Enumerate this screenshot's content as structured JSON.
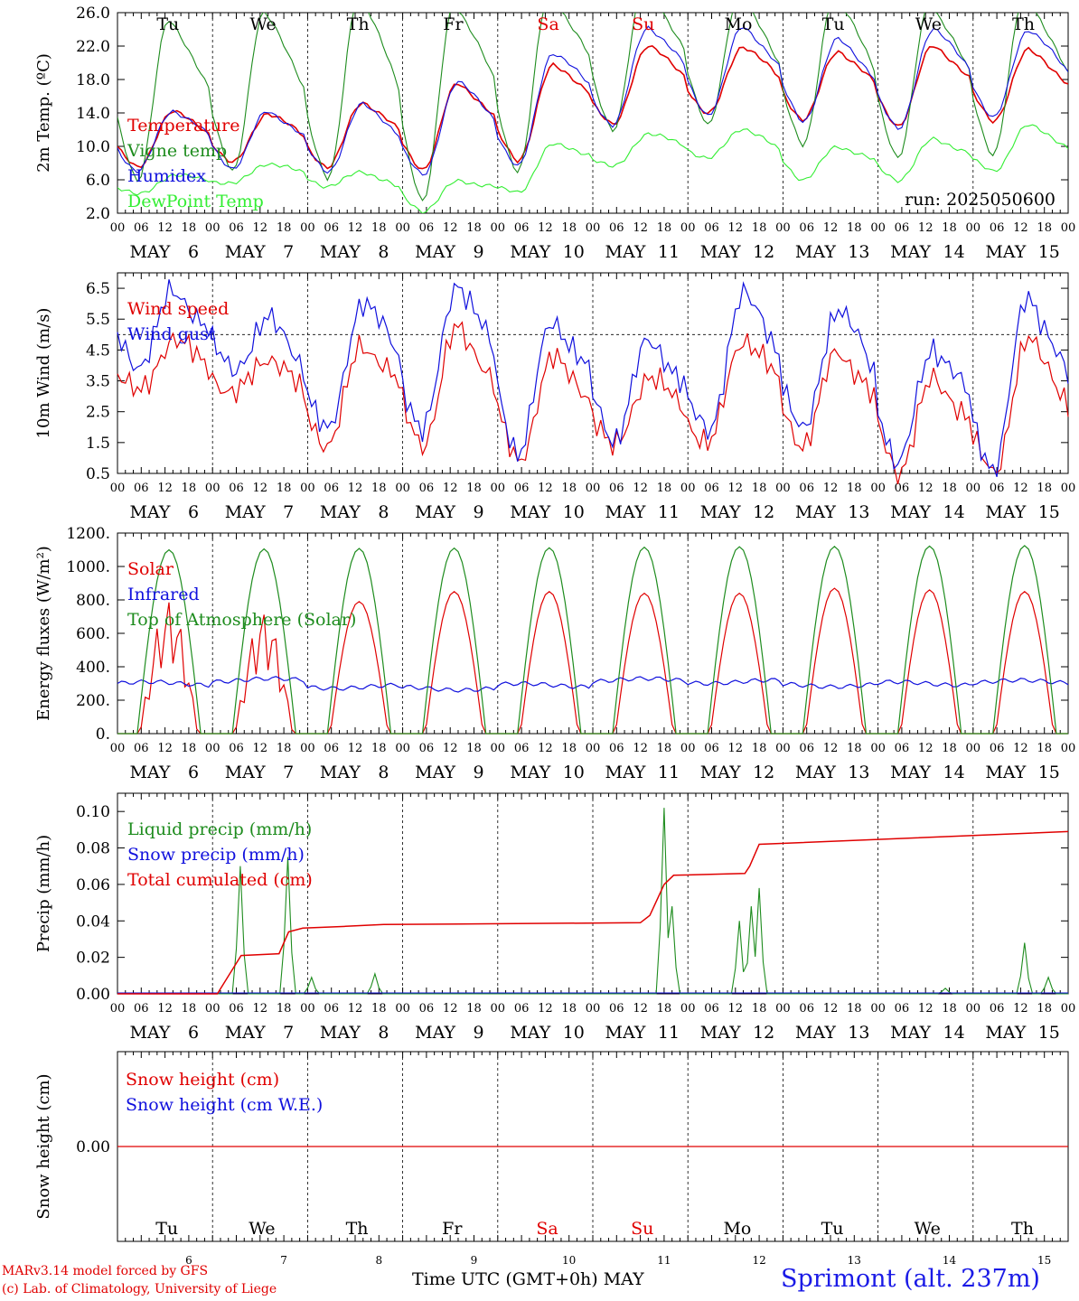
{
  "colors": {
    "red": "#e00000",
    "blue": "#1010dd",
    "green": "#1e8c1e",
    "lightgreen": "#33ee33",
    "black": "#000000"
  },
  "x_ticks": [
    "00",
    "06",
    "12",
    "18"
  ],
  "days": [
    {
      "month": "MAY",
      "num": "6",
      "weekday": "Tu",
      "weekend": false
    },
    {
      "month": "MAY",
      "num": "7",
      "weekday": "We",
      "weekend": false
    },
    {
      "month": "MAY",
      "num": "8",
      "weekday": "Th",
      "weekend": false
    },
    {
      "month": "MAY",
      "num": "9",
      "weekday": "Fr",
      "weekend": false
    },
    {
      "month": "MAY",
      "num": "10",
      "weekday": "Sa",
      "weekend": true
    },
    {
      "month": "MAY",
      "num": "11",
      "weekday": "Su",
      "weekend": true
    },
    {
      "month": "MAY",
      "num": "12",
      "weekday": "Mo",
      "weekend": false
    },
    {
      "month": "MAY",
      "num": "13",
      "weekday": "Tu",
      "weekend": false
    },
    {
      "month": "MAY",
      "num": "14",
      "weekday": "We",
      "weekend": false
    },
    {
      "month": "MAY",
      "num": "15",
      "weekday": "Th",
      "weekend": false
    }
  ],
  "footer": {
    "model": "MARv3.14 model forced by GFS",
    "credit": "(c) Lab. of Climatology, University of Liege",
    "xlabel": "Time UTC (GMT+0h) MAY",
    "station": "Sprimont (alt. 237m)"
  },
  "chart_data": [
    {
      "type": "line",
      "ylabel": "2m Temp. (ºC)",
      "ylim": [
        2,
        26
      ],
      "yticks": [
        "2.0",
        "6.0",
        "10.0",
        "14.0",
        "18.0",
        "22.0",
        "26.0"
      ],
      "annotation": "run: 2025050600",
      "series": [
        {
          "name": "Temperature",
          "color": "red",
          "min": [
            7.4,
            8.0,
            7.5,
            7.3,
            8.3,
            12.5,
            13.8,
            13.2,
            12.5,
            13.0
          ],
          "max": [
            14.2,
            14.0,
            15.3,
            17.5,
            19.6,
            22.0,
            22.0,
            21.4,
            22.0,
            21.5
          ]
        },
        {
          "name": "Vigne temp",
          "color": "green",
          "min": [
            6.0,
            7.0,
            6.0,
            3.3,
            7.0,
            12.0,
            12.5,
            10.0,
            8.5,
            9.0
          ],
          "max": [
            25.0,
            26.0,
            28.0,
            27.0,
            28.0,
            29.0,
            28.0,
            28.0,
            27.0,
            28.0
          ]
        },
        {
          "name": "Humidex",
          "color": "blue",
          "min": [
            7.0,
            7.4,
            7.0,
            6.5,
            7.5,
            12.5,
            13.8,
            13.0,
            12.0,
            13.3
          ],
          "max": [
            14.3,
            14.2,
            15.0,
            17.7,
            21.2,
            24.3,
            24.3,
            22.8,
            24.0,
            24.0
          ]
        },
        {
          "name": "DewPoint Temp",
          "color": "lightgreen",
          "min": [
            4.2,
            5.5,
            5.2,
            2.3,
            4.5,
            7.5,
            8.5,
            6.0,
            6.0,
            7.0
          ],
          "max": [
            6.5,
            8.0,
            7.0,
            5.8,
            10.2,
            11.5,
            12.2,
            10.0,
            10.8,
            12.5
          ]
        }
      ]
    },
    {
      "type": "line",
      "ylabel": "10m Wind (m/s)",
      "ylim": [
        0.5,
        7.0
      ],
      "yticks": [
        "0.5",
        "1.5",
        "2.5",
        "3.5",
        "4.5",
        "5.5",
        "6.5"
      ],
      "reference_line": 5.0,
      "series": [
        {
          "name": "Wind speed",
          "color": "red",
          "min": [
            3.1,
            3.0,
            1.4,
            1.5,
            0.9,
            1.3,
            1.4,
            1.4,
            0.6,
            0.5
          ],
          "max": [
            4.8,
            4.3,
            4.7,
            5.2,
            4.2,
            3.6,
            4.9,
            4.5,
            3.5,
            4.8
          ]
        },
        {
          "name": "Wind gust",
          "color": "blue",
          "min": [
            4.0,
            3.8,
            1.8,
            1.9,
            1.2,
            1.6,
            1.8,
            1.8,
            0.8,
            0.7
          ],
          "max": [
            6.3,
            5.5,
            6.1,
            6.7,
            5.4,
            4.7,
            6.3,
            5.9,
            4.6,
            6.2
          ]
        }
      ]
    },
    {
      "type": "line",
      "ylabel": "Energy fluxes (W/m²)",
      "ylim": [
        0,
        1200
      ],
      "yticks": [
        "0.",
        "200.",
        "400.",
        "600.",
        "800.",
        "1000.",
        "1200."
      ],
      "series": [
        {
          "name": "Solar",
          "color": "red",
          "daily_peak": [
            820,
            760,
            790,
            850,
            850,
            840,
            840,
            870,
            860,
            850
          ]
        },
        {
          "name": "Infrared",
          "color": "blue",
          "mean": [
            300,
            320,
            280,
            270,
            290,
            320,
            310,
            290,
            300,
            310
          ]
        },
        {
          "name": "Top of Atmosphere (Solar)",
          "color": "green",
          "daily_peak": [
            1100,
            1105,
            1108,
            1110,
            1112,
            1115,
            1118,
            1120,
            1122,
            1125
          ]
        }
      ]
    },
    {
      "type": "line",
      "ylabel": "Precip (mm/h)",
      "ylim": [
        0,
        0.11
      ],
      "yticks": [
        "0.00",
        "0.02",
        "0.04",
        "0.06",
        "0.08",
        "0.10"
      ],
      "series": [
        {
          "name": "Liquid precip (mm/h)",
          "color": "green",
          "events": [
            [
              1.3,
              0.07
            ],
            [
              1.8,
              0.075
            ],
            [
              2.05,
              0.009
            ],
            [
              2.7,
              0.011
            ],
            [
              5.75,
              0.102
            ],
            [
              5.85,
              0.048
            ],
            [
              6.55,
              0.04
            ],
            [
              6.68,
              0.048
            ],
            [
              6.76,
              0.058
            ],
            [
              8.7,
              0.003
            ],
            [
              9.55,
              0.028
            ],
            [
              9.78,
              0.009
            ]
          ]
        },
        {
          "name": "Snow precip (mm/h)",
          "color": "blue",
          "events": []
        },
        {
          "name": "Total cumulated (cm)",
          "color": "red",
          "x": [
            0,
            1.05,
            1.3,
            1.7,
            1.8,
            1.95,
            2.4,
            2.8,
            5.5,
            5.6,
            5.75,
            5.85,
            6.6,
            6.65,
            6.75,
            10
          ],
          "values": [
            0,
            0,
            0.021,
            0.022,
            0.034,
            0.036,
            0.037,
            0.038,
            0.039,
            0.043,
            0.06,
            0.065,
            0.066,
            0.07,
            0.082,
            0.089
          ]
        }
      ]
    },
    {
      "type": "line",
      "ylabel": "Snow height (cm)",
      "ylim": [
        -0.5,
        0.5
      ],
      "yticks": [
        "0.00"
      ],
      "series": [
        {
          "name": "Snow height (cm)",
          "color": "red",
          "values": [
            0,
            0
          ]
        },
        {
          "name": "Snow height (cm W.E.)",
          "color": "blue",
          "values": []
        }
      ]
    }
  ]
}
